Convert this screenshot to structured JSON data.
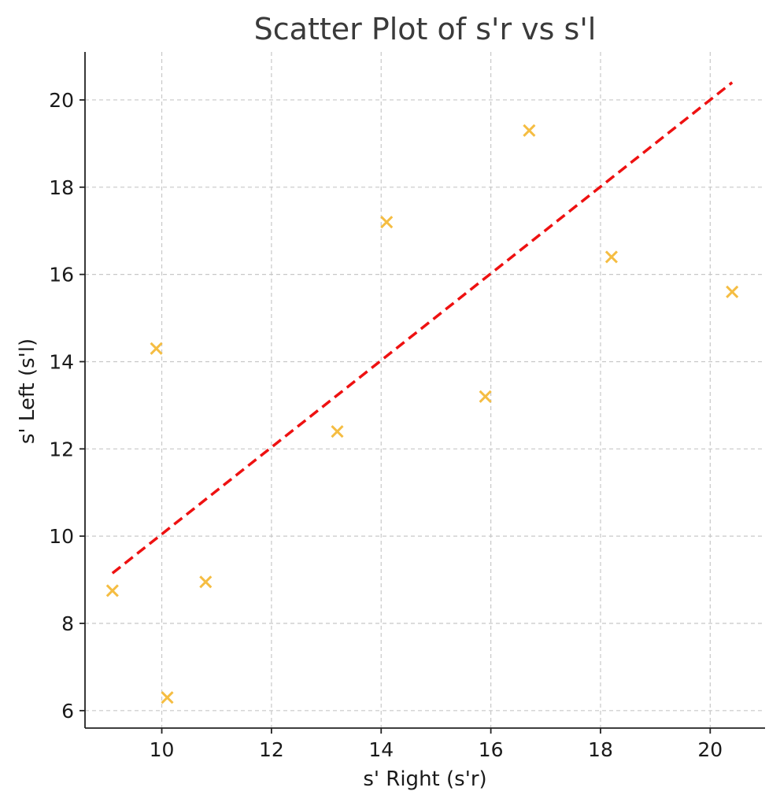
{
  "chart_data": {
    "type": "scatter",
    "title": "Scatter Plot of s'r vs s'l",
    "xlabel": "s' Right (s'r)",
    "ylabel": "s' Left (s'l)",
    "xlim": [
      8.6,
      21.0
    ],
    "ylim": [
      5.6,
      21.1
    ],
    "xticks": [
      10,
      12,
      14,
      16,
      18,
      20
    ],
    "yticks": [
      6,
      8,
      10,
      12,
      14,
      16,
      18,
      20
    ],
    "grid": true,
    "series": [
      {
        "marker": "x",
        "color": "#f5bd42",
        "points": [
          {
            "x": 9.1,
            "y": 8.75
          },
          {
            "x": 9.9,
            "y": 14.3
          },
          {
            "x": 10.1,
            "y": 6.3
          },
          {
            "x": 10.8,
            "y": 8.95
          },
          {
            "x": 13.2,
            "y": 12.4
          },
          {
            "x": 14.1,
            "y": 17.2
          },
          {
            "x": 15.9,
            "y": 13.2
          },
          {
            "x": 16.7,
            "y": 19.3
          },
          {
            "x": 18.2,
            "y": 16.4
          },
          {
            "x": 20.4,
            "y": 15.6
          }
        ]
      }
    ],
    "trend_line": {
      "style": "dashed",
      "color": "#ee1111",
      "points": [
        {
          "x": 9.1,
          "y": 9.15
        },
        {
          "x": 20.4,
          "y": 20.4
        }
      ]
    }
  }
}
